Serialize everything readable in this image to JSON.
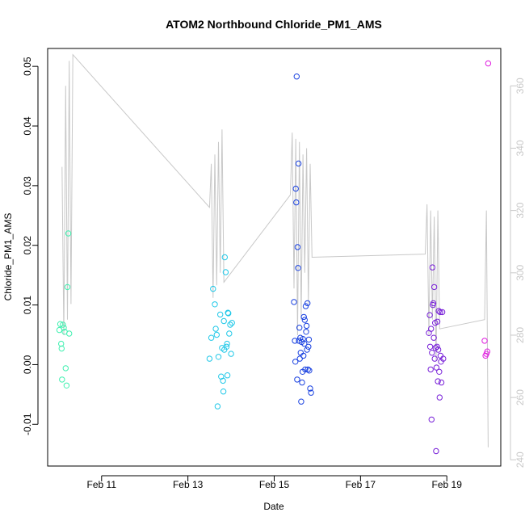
{
  "chart_data": {
    "type": "scatter",
    "title": "ATOM2 Northbound Chloride_PM1_AMS",
    "xlabel": "Date",
    "ylabel": "Chloride_PM1_AMS",
    "xlim": [
      "2018-02-09T18:00",
      "2018-02-20T06:00"
    ],
    "ylim": [
      -0.017,
      0.053
    ],
    "x_ticks": [
      {
        "value": "2018-02-11",
        "label": "Feb 11"
      },
      {
        "value": "2018-02-13",
        "label": "Feb 13"
      },
      {
        "value": "2018-02-15",
        "label": "Feb 15"
      },
      {
        "value": "2018-02-17",
        "label": "Feb 17"
      },
      {
        "value": "2018-02-19",
        "label": "Feb 19"
      }
    ],
    "y_ticks": [
      -0.01,
      0.0,
      0.01,
      0.02,
      0.03,
      0.04,
      0.05
    ],
    "y_tick_labels": [
      "-0.01",
      "0.00",
      "0.01",
      "0.02",
      "0.03",
      "0.04",
      "0.05"
    ],
    "y2lim": [
      238,
      372
    ],
    "y2_ticks": [
      240,
      260,
      280,
      300,
      320,
      340,
      360
    ],
    "y2_tick_labels": [
      "240",
      "260",
      "280",
      "300",
      "320",
      "340",
      "360"
    ],
    "colors": {
      "secondary_line": "#c8c8c8",
      "axis": "#000000",
      "secondary_axis": "#c8c8c8"
    },
    "secondary_line": [
      [
        "2018-02-10T02:00",
        334
      ],
      [
        "2018-02-10T03:00",
        280
      ],
      [
        "2018-02-10T04:00",
        360
      ],
      [
        "2018-02-10T05:00",
        285
      ],
      [
        "2018-02-10T06:00",
        368
      ],
      [
        "2018-02-10T07:00",
        290
      ],
      [
        "2018-02-10T08:00",
        370
      ],
      [
        "2018-02-13T12:00",
        321
      ],
      [
        "2018-02-13T13:00",
        335
      ],
      [
        "2018-02-13T14:00",
        292
      ],
      [
        "2018-02-13T15:00",
        338
      ],
      [
        "2018-02-13T16:00",
        296
      ],
      [
        "2018-02-13T17:00",
        342
      ],
      [
        "2018-02-13T18:00",
        300
      ],
      [
        "2018-02-13T19:00",
        346
      ],
      [
        "2018-02-13T20:00",
        297
      ],
      [
        "2018-02-15T09:00",
        325
      ],
      [
        "2018-02-15T10:00",
        345
      ],
      [
        "2018-02-15T11:00",
        295
      ],
      [
        "2018-02-15T12:00",
        343
      ],
      [
        "2018-02-15T13:00",
        280
      ],
      [
        "2018-02-15T14:00",
        342
      ],
      [
        "2018-02-15T15:00",
        285
      ],
      [
        "2018-02-15T16:00",
        338
      ],
      [
        "2018-02-15T17:00",
        300
      ],
      [
        "2018-02-15T18:00",
        340
      ],
      [
        "2018-02-15T19:00",
        290
      ],
      [
        "2018-02-15T20:00",
        335
      ],
      [
        "2018-02-15T21:00",
        305
      ],
      [
        "2018-02-18T12:00",
        306
      ],
      [
        "2018-02-18T13:00",
        322
      ],
      [
        "2018-02-18T14:00",
        280
      ],
      [
        "2018-02-18T15:00",
        320
      ],
      [
        "2018-02-18T16:00",
        285
      ],
      [
        "2018-02-18T17:00",
        318
      ],
      [
        "2018-02-18T18:00",
        272
      ],
      [
        "2018-02-18T19:00",
        320
      ],
      [
        "2018-02-18T20:00",
        282
      ],
      [
        "2018-02-19T21:00",
        285
      ],
      [
        "2018-02-19T22:00",
        320
      ],
      [
        "2018-02-19T23:00",
        244
      ]
    ],
    "series": [
      {
        "color": "#40f0b0",
        "points": [
          [
            "2018-02-10T00:30",
            0.0058
          ],
          [
            "2018-02-10T01:00",
            0.0068
          ],
          [
            "2018-02-10T01:30",
            0.0035
          ],
          [
            "2018-02-10T01:45",
            0.0027
          ],
          [
            "2018-02-10T02:00",
            -0.0025
          ],
          [
            "2018-02-10T02:30",
            0.0067
          ],
          [
            "2018-02-10T03:00",
            0.0062
          ],
          [
            "2018-02-10T03:30",
            0.0055
          ],
          [
            "2018-02-10T04:00",
            -0.0006
          ],
          [
            "2018-02-10T04:30",
            -0.0035
          ],
          [
            "2018-02-10T05:00",
            0.013
          ],
          [
            "2018-02-10T05:30",
            0.022
          ],
          [
            "2018-02-10T06:00",
            0.0052
          ]
        ]
      },
      {
        "color": "#20c8e8",
        "points": [
          [
            "2018-02-13T12:00",
            0.001
          ],
          [
            "2018-02-13T13:00",
            0.0045
          ],
          [
            "2018-02-13T14:00",
            0.0127
          ],
          [
            "2018-02-13T15:00",
            0.0101
          ],
          [
            "2018-02-13T15:30",
            0.006
          ],
          [
            "2018-02-13T16:00",
            0.005
          ],
          [
            "2018-02-13T16:30",
            -0.007
          ],
          [
            "2018-02-13T17:00",
            0.0013
          ],
          [
            "2018-02-13T18:00",
            0.0084
          ],
          [
            "2018-02-13T18:30",
            -0.002
          ],
          [
            "2018-02-13T19:00",
            0.0028
          ],
          [
            "2018-02-13T19:30",
            -0.0027
          ],
          [
            "2018-02-13T20:00",
            0.0073
          ],
          [
            "2018-02-13T20:30",
            0.018
          ],
          [
            "2018-02-13T21:00",
            0.0155
          ],
          [
            "2018-02-13T21:30",
            0.003
          ],
          [
            "2018-02-13T22:00",
            -0.0018
          ],
          [
            "2018-02-13T22:30",
            0.0086
          ],
          [
            "2018-02-13T23:00",
            0.0052
          ],
          [
            "2018-02-13T23:30",
            0.0067
          ],
          [
            "2018-02-14T00:00",
            0.0018
          ],
          [
            "2018-02-14T00:30",
            0.007
          ],
          [
            "2018-02-13T20:15",
            0.0025
          ],
          [
            "2018-02-13T21:45",
            0.0035
          ],
          [
            "2018-02-13T19:45",
            -0.0045
          ],
          [
            "2018-02-13T22:15",
            0.0087
          ]
        ]
      },
      {
        "color": "#1840e0",
        "points": [
          [
            "2018-02-15T11:00",
            0.0105
          ],
          [
            "2018-02-15T11:30",
            0.004
          ],
          [
            "2018-02-15T12:00",
            0.0295
          ],
          [
            "2018-02-15T12:15",
            0.0272
          ],
          [
            "2018-02-15T12:30",
            0.0483
          ],
          [
            "2018-02-15T13:00",
            0.0197
          ],
          [
            "2018-02-15T13:15",
            0.0162
          ],
          [
            "2018-02-15T13:30",
            0.0337
          ],
          [
            "2018-02-15T14:00",
            0.0062
          ],
          [
            "2018-02-15T14:30",
            0.0045
          ],
          [
            "2018-02-15T15:00",
            -0.0062
          ],
          [
            "2018-02-15T15:30",
            -0.003
          ],
          [
            "2018-02-15T16:00",
            0.0043
          ],
          [
            "2018-02-15T16:30",
            0.008
          ],
          [
            "2018-02-15T17:00",
            0.0075
          ],
          [
            "2018-02-15T17:30",
            0.0098
          ],
          [
            "2018-02-15T18:00",
            0.0065
          ],
          [
            "2018-02-15T18:30",
            0.0103
          ],
          [
            "2018-02-15T19:00",
            0.003
          ],
          [
            "2018-02-15T19:30",
            -0.001
          ],
          [
            "2018-02-15T20:00",
            -0.004
          ],
          [
            "2018-02-15T20:30",
            -0.0047
          ],
          [
            "2018-02-15T11:45",
            0.0005
          ],
          [
            "2018-02-15T12:45",
            -0.0025
          ],
          [
            "2018-02-15T13:45",
            0.004
          ],
          [
            "2018-02-15T14:15",
            0.001
          ],
          [
            "2018-02-15T14:45",
            0.002
          ],
          [
            "2018-02-15T15:15",
            0.0038
          ],
          [
            "2018-02-15T15:45",
            -0.0012
          ],
          [
            "2018-02-15T16:15",
            0.0015
          ],
          [
            "2018-02-15T16:45",
            0.0035
          ],
          [
            "2018-02-15T17:15",
            -0.0008
          ],
          [
            "2018-02-15T17:45",
            0.0055
          ],
          [
            "2018-02-15T18:15",
            0.0025
          ],
          [
            "2018-02-15T18:45",
            -0.0008
          ],
          [
            "2018-02-15T19:15",
            0.0042
          ]
        ]
      },
      {
        "color": "#7820d8",
        "points": [
          [
            "2018-02-18T14:00",
            0.0053
          ],
          [
            "2018-02-18T14:30",
            0.0083
          ],
          [
            "2018-02-18T15:00",
            -0.0008
          ],
          [
            "2018-02-18T15:30",
            -0.0092
          ],
          [
            "2018-02-18T16:00",
            0.0163
          ],
          [
            "2018-02-18T16:30",
            0.0103
          ],
          [
            "2018-02-18T17:00",
            0.013
          ],
          [
            "2018-02-18T17:30",
            0.007
          ],
          [
            "2018-02-18T18:00",
            -0.0145
          ],
          [
            "2018-02-18T18:30",
            0.003
          ],
          [
            "2018-02-18T19:00",
            -0.0028
          ],
          [
            "2018-02-18T19:30",
            0.009
          ],
          [
            "2018-02-18T20:00",
            -0.0055
          ],
          [
            "2018-02-18T20:30",
            0.0015
          ],
          [
            "2018-02-18T21:00",
            -0.003
          ],
          [
            "2018-02-18T21:30",
            0.0088
          ],
          [
            "2018-02-18T22:00",
            0.001
          ],
          [
            "2018-02-18T14:45",
            0.003
          ],
          [
            "2018-02-18T15:15",
            0.006
          ],
          [
            "2018-02-18T15:45",
            0.002
          ],
          [
            "2018-02-18T16:15",
            0.01
          ],
          [
            "2018-02-18T16:45",
            0.0045
          ],
          [
            "2018-02-18T17:15",
            0.001
          ],
          [
            "2018-02-18T17:45",
            0.0028
          ],
          [
            "2018-02-18T18:15",
            -0.0005
          ],
          [
            "2018-02-18T18:45",
            0.0072
          ],
          [
            "2018-02-18T19:15",
            0.0025
          ],
          [
            "2018-02-18T19:45",
            -0.0012
          ],
          [
            "2018-02-18T20:15",
            0.0088
          ],
          [
            "2018-02-18T20:45",
            0.0005
          ]
        ]
      },
      {
        "color": "#e020e0",
        "points": [
          [
            "2018-02-19T21:00",
            0.004
          ],
          [
            "2018-02-19T21:30",
            0.0015
          ],
          [
            "2018-02-19T22:00",
            0.0018
          ],
          [
            "2018-02-19T22:30",
            0.0022
          ],
          [
            "2018-02-19T23:00",
            0.0505
          ]
        ]
      }
    ]
  }
}
